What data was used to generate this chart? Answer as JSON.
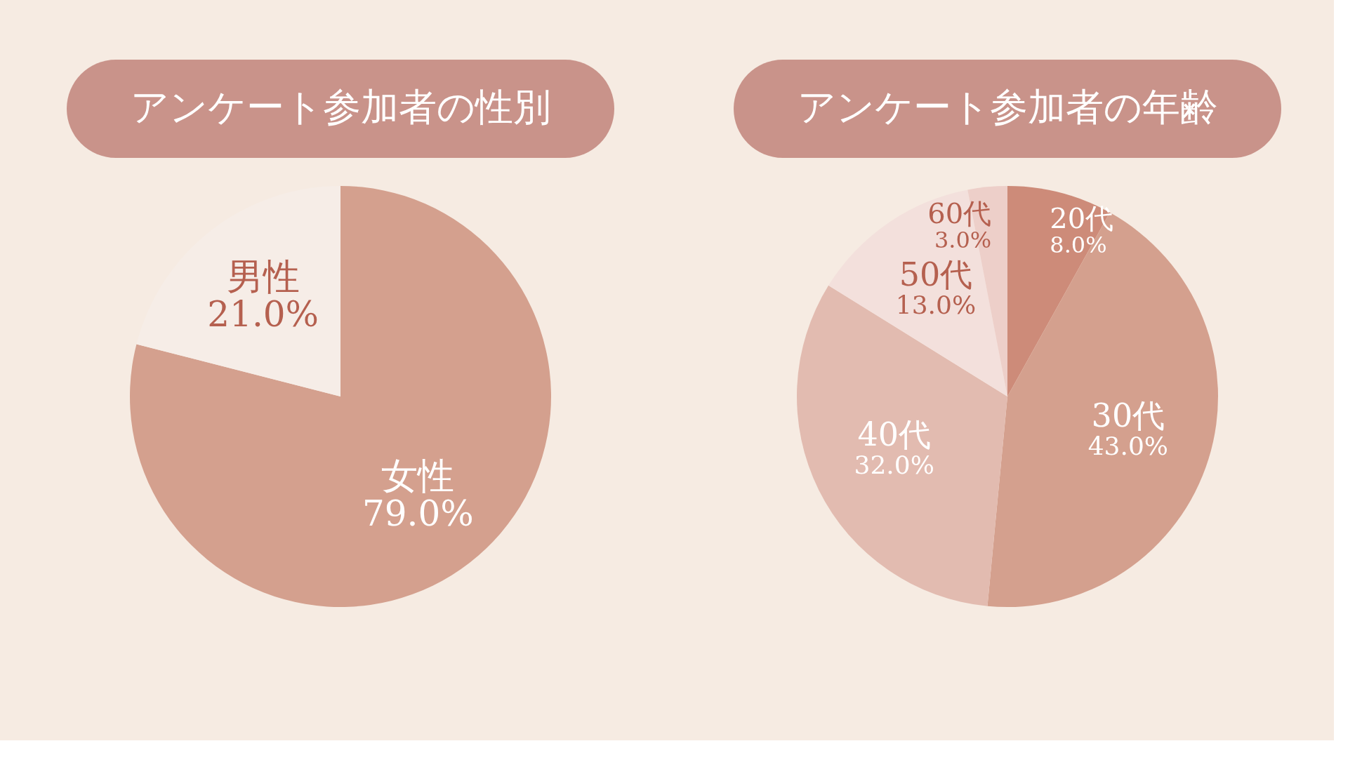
{
  "chart_data": [
    {
      "type": "pie",
      "title": "アンケート参加者の性別",
      "categories": [
        "女性",
        "男性"
      ],
      "values": [
        79.0,
        21.0
      ],
      "value_labels": [
        "79.0%",
        "21.0%"
      ],
      "colors": [
        "#d4a08e",
        "#f6ede7"
      ]
    },
    {
      "type": "pie",
      "title": "アンケート参加者の年齢",
      "categories": [
        "20代",
        "30代",
        "40代",
        "50代",
        "60代"
      ],
      "values": [
        8.0,
        43.0,
        32.0,
        13.0,
        3.0
      ],
      "value_labels": [
        "8.0%",
        "43.0%",
        "32.0%",
        "13.0%",
        "3.0%"
      ],
      "colors": [
        "#cd8b79",
        "#d4a08e",
        "#e2bbb0",
        "#f3e0dc",
        "#edcfc9"
      ]
    }
  ]
}
